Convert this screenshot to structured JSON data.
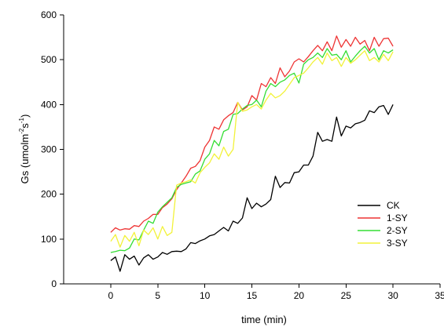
{
  "chart_data": {
    "type": "line",
    "xlabel": "time (min)",
    "ylabel_parts": [
      "Gs (umolm",
      "-2",
      "s",
      "-1",
      ")"
    ],
    "xlim": [
      -5,
      35
    ],
    "ylim": [
      0,
      600
    ],
    "xticks": [
      0,
      5,
      10,
      15,
      20,
      25,
      30,
      35
    ],
    "yticks": [
      0,
      100,
      200,
      300,
      400,
      500,
      600
    ],
    "grid": false,
    "legend_position": "lower-right",
    "series": [
      {
        "name": "CK",
        "color": "#000000",
        "x": [
          0,
          0.5,
          1,
          1.5,
          2,
          2.5,
          3,
          3.5,
          4,
          4.5,
          5,
          5.5,
          6,
          6.5,
          7,
          7.5,
          8,
          8.5,
          9,
          9.5,
          10,
          10.5,
          11,
          11.5,
          12,
          12.5,
          13,
          13.5,
          14,
          14.5,
          15,
          15.5,
          16,
          16.5,
          17,
          17.5,
          18,
          18.5,
          19,
          19.5,
          20,
          20.5,
          21,
          21.5,
          22,
          22.5,
          23,
          23.5,
          24,
          24.5,
          25,
          25.5,
          26,
          26.5,
          27,
          27.5,
          28,
          28.5,
          29,
          29.5,
          30
        ],
        "values": [
          52,
          60,
          28,
          65,
          55,
          62,
          42,
          58,
          65,
          55,
          60,
          70,
          66,
          72,
          73,
          72,
          78,
          92,
          90,
          96,
          100,
          107,
          110,
          118,
          126,
          118,
          140,
          135,
          147,
          192,
          168,
          180,
          172,
          178,
          188,
          240,
          215,
          226,
          225,
          248,
          250,
          265,
          265,
          285,
          338,
          318,
          322,
          318,
          372,
          330,
          352,
          348,
          357,
          360,
          365,
          386,
          382,
          395,
          398,
          378,
          400
        ]
      },
      {
        "name": "1-SY",
        "color": "#ee3333",
        "x": [
          0,
          0.5,
          1,
          1.5,
          2,
          2.5,
          3,
          3.5,
          4,
          4.5,
          5,
          5.5,
          6,
          6.5,
          7,
          7.5,
          8,
          8.5,
          9,
          9.5,
          10,
          10.5,
          11,
          11.5,
          12,
          12.5,
          13,
          13.5,
          14,
          14.5,
          15,
          15.5,
          16,
          16.5,
          17,
          17.5,
          18,
          18.5,
          19,
          19.5,
          20,
          20.5,
          21,
          21.5,
          22,
          22.5,
          23,
          23.5,
          24,
          24.5,
          25,
          25.5,
          26,
          26.5,
          27,
          27.5,
          28,
          28.5,
          29,
          29.5,
          30
        ],
        "values": [
          115,
          125,
          120,
          123,
          122,
          130,
          128,
          140,
          146,
          155,
          155,
          170,
          178,
          190,
          210,
          225,
          240,
          258,
          262,
          275,
          305,
          320,
          350,
          345,
          366,
          375,
          382,
          405,
          388,
          395,
          420,
          410,
          447,
          440,
          460,
          447,
          482,
          462,
          475,
          495,
          502,
          495,
          507,
          520,
          532,
          520,
          540,
          520,
          553,
          528,
          545,
          530,
          550,
          535,
          543,
          520,
          550,
          530,
          547,
          548,
          530
        ]
      },
      {
        "name": "2-SY",
        "color": "#33dd33",
        "x": [
          0,
          0.5,
          1,
          1.5,
          2,
          2.5,
          3,
          3.5,
          4,
          4.5,
          5,
          5.5,
          6,
          6.5,
          7,
          7.5,
          8,
          8.5,
          9,
          9.5,
          10,
          10.5,
          11,
          11.5,
          12,
          12.5,
          13,
          13.5,
          14,
          14.5,
          15,
          15.5,
          16,
          16.5,
          17,
          17.5,
          18,
          18.5,
          19,
          19.5,
          20,
          20.5,
          21,
          21.5,
          22,
          22.5,
          23,
          23.5,
          24,
          24.5,
          25,
          25.5,
          26,
          26.5,
          27,
          27.5,
          28,
          28.5,
          29,
          29.5,
          30
        ],
        "values": [
          70,
          72,
          75,
          74,
          80,
          100,
          98,
          120,
          140,
          135,
          160,
          172,
          182,
          192,
          215,
          222,
          225,
          228,
          245,
          252,
          278,
          290,
          320,
          308,
          340,
          345,
          378,
          380,
          390,
          398,
          400,
          410,
          395,
          430,
          447,
          440,
          450,
          455,
          465,
          470,
          448,
          490,
          500,
          505,
          515,
          505,
          525,
          510,
          512,
          500,
          520,
          495,
          508,
          520,
          530,
          515,
          525,
          500,
          520,
          515,
          522
        ]
      },
      {
        "name": "3-SY",
        "color": "#f2f23a",
        "x": [
          0,
          0.5,
          1,
          1.5,
          2,
          2.5,
          3,
          3.5,
          4,
          4.5,
          5,
          5.5,
          6,
          6.5,
          7,
          7.5,
          8,
          8.5,
          9,
          9.5,
          10,
          10.5,
          11,
          11.5,
          12,
          12.5,
          13,
          13.5,
          14,
          14.5,
          15,
          15.5,
          16,
          16.5,
          17,
          17.5,
          18,
          18.5,
          19,
          19.5,
          20,
          20.5,
          21,
          21.5,
          22,
          22.5,
          23,
          23.5,
          24,
          24.5,
          25,
          25.5,
          26,
          26.5,
          27,
          27.5,
          28,
          28.5,
          29,
          29.5,
          30
        ],
        "values": [
          95,
          110,
          82,
          108,
          95,
          115,
          85,
          120,
          110,
          125,
          100,
          128,
          108,
          115,
          220,
          225,
          228,
          232,
          225,
          248,
          260,
          270,
          290,
          278,
          305,
          285,
          300,
          405,
          385,
          388,
          395,
          400,
          390,
          410,
          425,
          415,
          420,
          430,
          445,
          460,
          465,
          470,
          482,
          495,
          505,
          490,
          515,
          498,
          505,
          485,
          505,
          492,
          500,
          510,
          520,
          498,
          505,
          495,
          512,
          498,
          518
        ]
      }
    ]
  }
}
